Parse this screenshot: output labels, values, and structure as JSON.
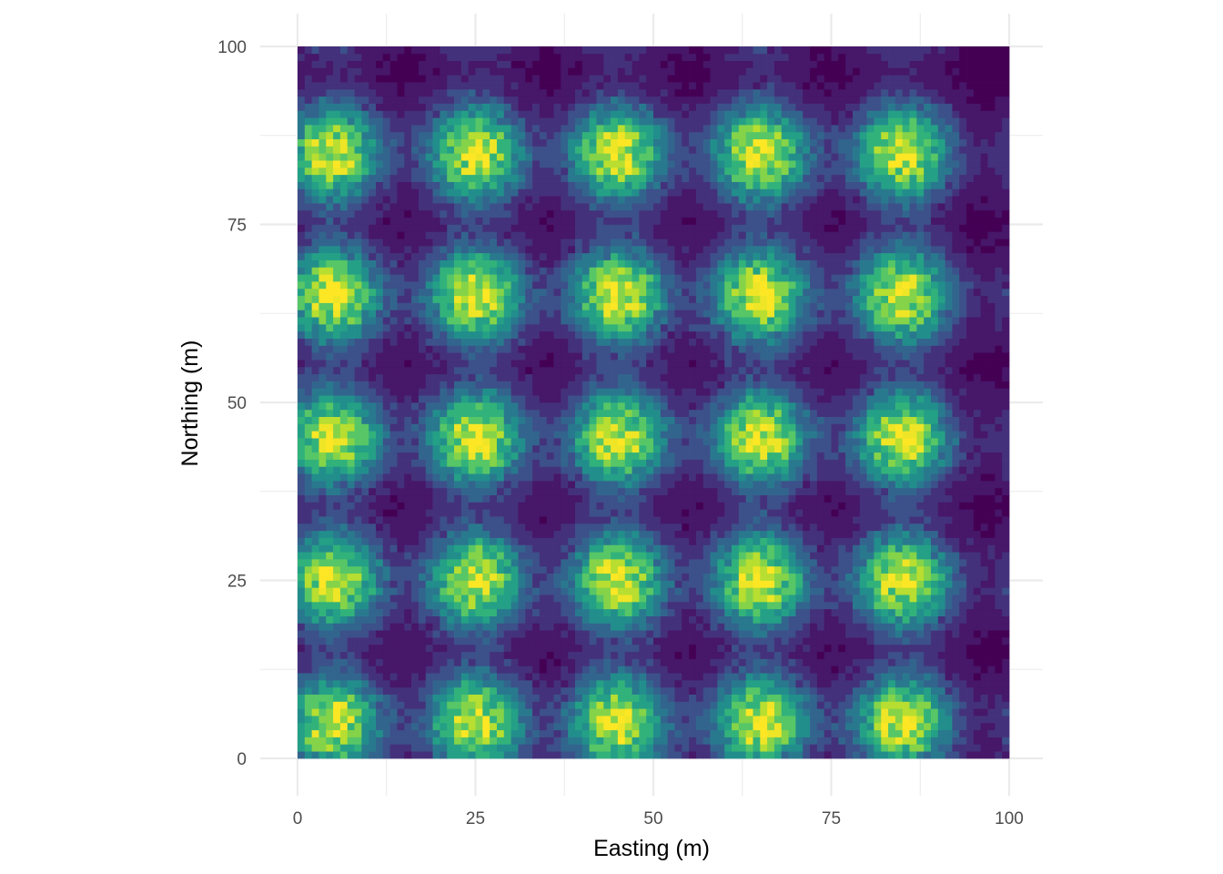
{
  "chart_data": {
    "type": "heatmap",
    "title": "",
    "xlabel": "Easting (m)",
    "ylabel": "Northing (m)",
    "xlim": [
      0,
      100
    ],
    "ylim": [
      0,
      100
    ],
    "x_ticks": [
      0,
      25,
      50,
      75,
      100
    ],
    "y_ticks": [
      0,
      25,
      50,
      75,
      100
    ],
    "x_tick_labels": [
      "0",
      "25",
      "50",
      "75",
      "100"
    ],
    "y_tick_labels": [
      "0",
      "25",
      "50",
      "75",
      "100"
    ],
    "grid": true,
    "legend": "none",
    "colormap": "viridis",
    "colors": {
      "low": "#440154",
      "mid_low": "#31688e",
      "mid": "#21908c",
      "mid_high": "#5dc863",
      "high": "#fde725",
      "grid": "#ebebeb"
    },
    "cell_size_m": 1,
    "hotspots": {
      "x_centers": [
        5,
        25,
        45,
        65,
        85
      ],
      "y_centers": [
        5,
        25,
        45,
        65,
        85
      ],
      "half_period_x_centers": [
        -5,
        15,
        35,
        55,
        75,
        95,
        105
      ],
      "half_period_y_centers": [
        -5,
        15,
        35,
        55,
        75,
        95,
        105
      ],
      "peak_value": 1.0,
      "minor_peak_value": 0.35,
      "sigma_m": 4.8
    }
  }
}
